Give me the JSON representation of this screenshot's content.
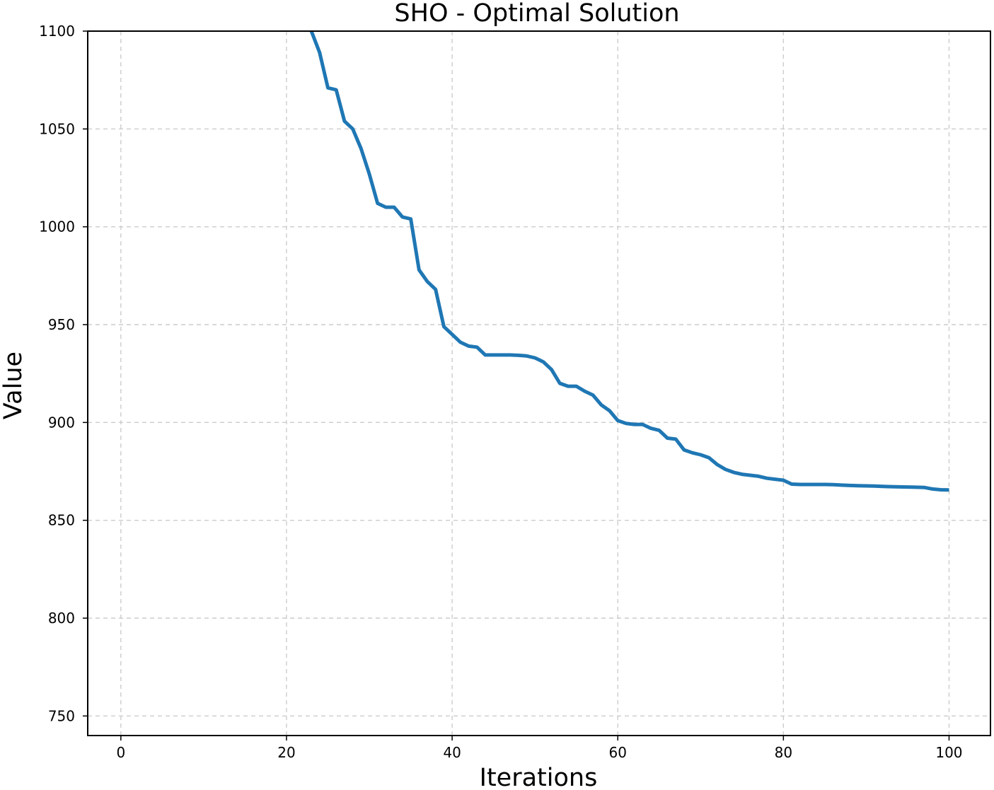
{
  "chart_data": {
    "type": "line",
    "title": "SHO - Optimal Solution",
    "xlabel": "Iterations",
    "ylabel": "Value",
    "xlim": [
      -4,
      105
    ],
    "ylim": [
      740,
      1100
    ],
    "xticks": [
      0,
      20,
      40,
      60,
      80,
      100
    ],
    "yticks": [
      750,
      800,
      850,
      900,
      950,
      1000,
      1050,
      1100
    ],
    "grid": true,
    "line_color": "#1f77b4",
    "series": [
      {
        "values": [
          [
            23,
            1100
          ],
          [
            24,
            1089
          ],
          [
            25,
            1071
          ],
          [
            26,
            1070
          ],
          [
            27,
            1054
          ],
          [
            28,
            1050
          ],
          [
            29,
            1040
          ],
          [
            30,
            1027
          ],
          [
            31,
            1012
          ],
          [
            32,
            1010
          ],
          [
            33,
            1010
          ],
          [
            34,
            1005
          ],
          [
            35,
            1004
          ],
          [
            36,
            978
          ],
          [
            37,
            972
          ],
          [
            38,
            968
          ],
          [
            39,
            949
          ],
          [
            40,
            945
          ],
          [
            41,
            941
          ],
          [
            42,
            939
          ],
          [
            43,
            938.5
          ],
          [
            44,
            934.5
          ],
          [
            45,
            934.5
          ],
          [
            46,
            934.5
          ],
          [
            47,
            934.5
          ],
          [
            48,
            934.3
          ],
          [
            49,
            934
          ],
          [
            50,
            933
          ],
          [
            51,
            931
          ],
          [
            52,
            927
          ],
          [
            53,
            920
          ],
          [
            54,
            918.5
          ],
          [
            55,
            918.5
          ],
          [
            56,
            916
          ],
          [
            57,
            914
          ],
          [
            58,
            909
          ],
          [
            59,
            906
          ],
          [
            60,
            901
          ],
          [
            61,
            899.5
          ],
          [
            62,
            899
          ],
          [
            63,
            899
          ],
          [
            64,
            897
          ],
          [
            65,
            896
          ],
          [
            66,
            892
          ],
          [
            67,
            891.5
          ],
          [
            68,
            886
          ],
          [
            69,
            884.5
          ],
          [
            70,
            883.5
          ],
          [
            71,
            882
          ],
          [
            72,
            878.5
          ],
          [
            73,
            876
          ],
          [
            74,
            874.5
          ],
          [
            75,
            873.5
          ],
          [
            76,
            873
          ],
          [
            77,
            872.5
          ],
          [
            78,
            871.5
          ],
          [
            79,
            871
          ],
          [
            80,
            870.5
          ],
          [
            81,
            868.5
          ],
          [
            82,
            868.3
          ],
          [
            83,
            868.3
          ],
          [
            84,
            868.3
          ],
          [
            85,
            868.3
          ],
          [
            86,
            868.2
          ],
          [
            87,
            868
          ],
          [
            88,
            867.8
          ],
          [
            89,
            867.7
          ],
          [
            90,
            867.6
          ],
          [
            91,
            867.5
          ],
          [
            92,
            867.3
          ],
          [
            93,
            867.2
          ],
          [
            94,
            867.1
          ],
          [
            95,
            867
          ],
          [
            96,
            866.9
          ],
          [
            97,
            866.8
          ],
          [
            98,
            866
          ],
          [
            99,
            865.6
          ],
          [
            100,
            865.5
          ]
        ]
      }
    ]
  }
}
